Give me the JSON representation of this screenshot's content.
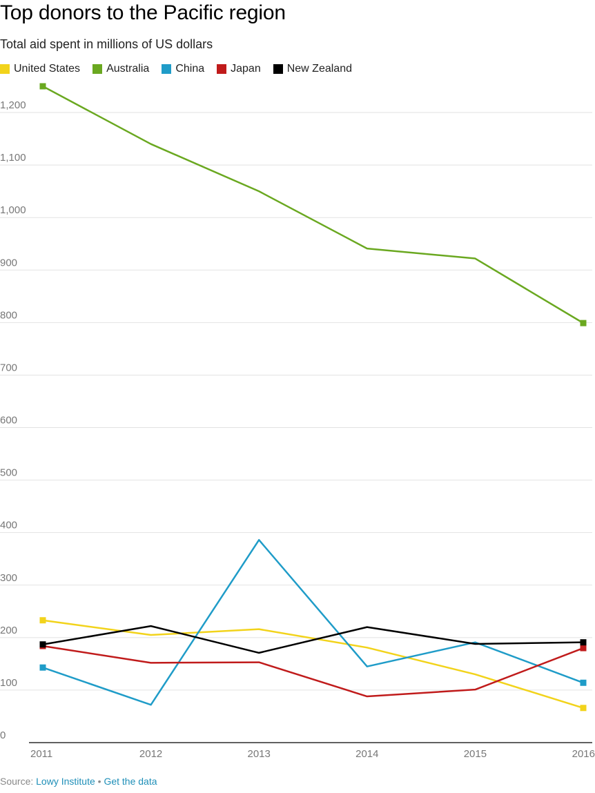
{
  "chart_data": {
    "type": "line",
    "title": "Top donors to the Pacific region",
    "subtitle": "Total aid spent in millions of US dollars",
    "x": [
      "2011",
      "2012",
      "2013",
      "2014",
      "2015",
      "2016"
    ],
    "ylim": [
      0,
      1250
    ],
    "y_ticks": [
      0,
      100,
      200,
      300,
      400,
      500,
      600,
      700,
      800,
      900,
      1000,
      1100,
      1200
    ],
    "y_tick_labels": [
      "0",
      "100",
      "200",
      "300",
      "400",
      "500",
      "600",
      "700",
      "800",
      "900",
      "1,000",
      "1,100",
      "1,200"
    ],
    "grid": true,
    "legend_position": "top-left",
    "series": [
      {
        "name": "United States",
        "color": "#f2d31b",
        "values": [
          233,
          205,
          216,
          181,
          130,
          66
        ]
      },
      {
        "name": "Australia",
        "color": "#6aa820",
        "values": [
          1250,
          1140,
          1050,
          941,
          922,
          799
        ]
      },
      {
        "name": "China",
        "color": "#1f9cc8",
        "values": [
          143,
          72,
          386,
          145,
          191,
          114
        ]
      },
      {
        "name": "Japan",
        "color": "#c01b1b",
        "values": [
          184,
          152,
          153,
          88,
          101,
          180
        ]
      },
      {
        "name": "New Zealand",
        "color": "#000000",
        "values": [
          187,
          222,
          171,
          220,
          188,
          191
        ]
      }
    ]
  },
  "footer": {
    "source_prefix": "Source: ",
    "source_link": "Lowy Institute",
    "separator": " • ",
    "data_link": "Get the data"
  }
}
